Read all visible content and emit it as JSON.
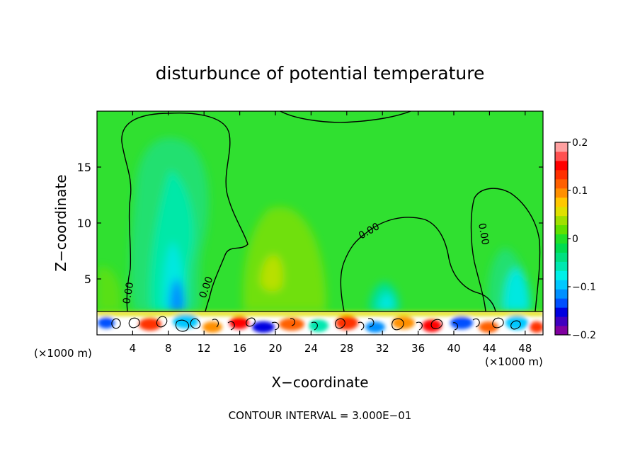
{
  "chart_data": {
    "type": "heatmap",
    "title": "disturbunce of potential temperature",
    "xlabel": "X−coordinate",
    "ylabel": "Z−coordinate",
    "x_unit_label": "(×1000 m)",
    "x_unit_label_right": "(×1000 m)",
    "xlim": [
      0,
      50
    ],
    "ylim": [
      0,
      20
    ],
    "x_ticks": [
      4,
      8,
      12,
      16,
      20,
      24,
      28,
      32,
      36,
      40,
      44,
      48
    ],
    "y_ticks": [
      5,
      10,
      15
    ],
    "footer": "CONTOUR INTERVAL = 3.000E−01",
    "contour_labels": [
      "0.00",
      "0.00",
      "0.00",
      "0.00"
    ],
    "colorbar": {
      "range": [
        -0.2,
        0.2
      ],
      "ticks": [
        {
          "value": 0.2,
          "label": "0.2"
        },
        {
          "value": 0.1,
          "label": "0.1"
        },
        {
          "value": 0.0,
          "label": "0"
        },
        {
          "value": -0.1,
          "label": "−0.1"
        },
        {
          "value": -0.2,
          "label": "−0.2"
        }
      ],
      "colors": [
        "#8000a0",
        "#4000c0",
        "#0000e0",
        "#0050ff",
        "#0090ff",
        "#00c8ff",
        "#00f0e8",
        "#00e8b0",
        "#00e080",
        "#00dc50",
        "#20e028",
        "#60e000",
        "#a0e000",
        "#e0e000",
        "#ffc800",
        "#ff9000",
        "#ff6000",
        "#ff3000",
        "#ff0000",
        "#ff5050",
        "#ffa0a0"
      ]
    },
    "regions": [
      {
        "label": "background",
        "value": 0.0
      },
      {
        "label": "cool plume",
        "x": 9,
        "z_top": 17,
        "value": -0.06
      },
      {
        "label": "cool plume",
        "x": 32,
        "z_top": 8,
        "value": -0.03
      },
      {
        "label": "cool plume",
        "x": 46,
        "z_top": 11,
        "value": -0.05
      },
      {
        "label": "warm plume",
        "x": 20,
        "z_top": 11,
        "value": 0.04
      },
      {
        "label": "turbulent boundary layer",
        "z_top": 2,
        "value_range": [
          -0.2,
          0.2
        ]
      }
    ]
  }
}
